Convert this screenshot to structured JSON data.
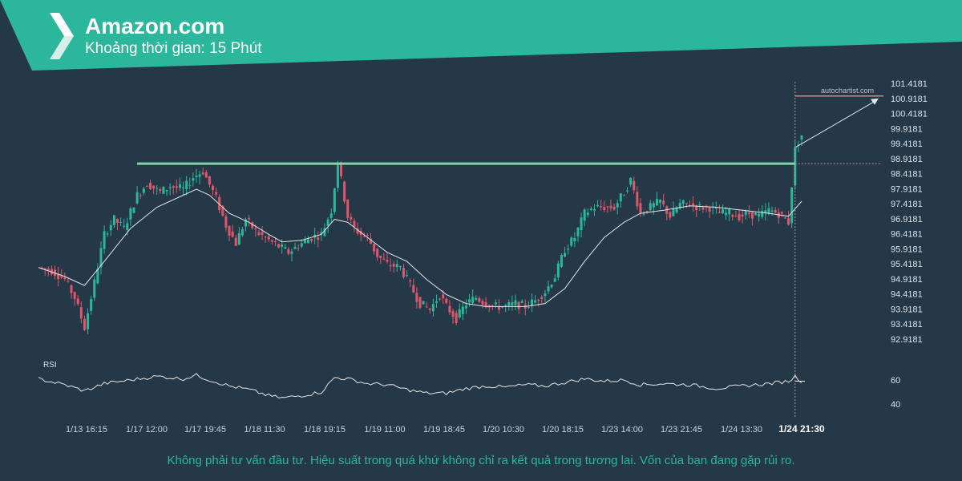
{
  "header": {
    "title": "Amazon.com",
    "subtitle": "Khoảng thời gian: 15 Phút",
    "band_color": "#2bb79c"
  },
  "footer": {
    "disclaimer": "Không phải tư vấn đầu tư. Hiệu suất trong quá khứ không chỉ ra kết quả trong tương lai. Vốn của bạn đang gặp rủi ro."
  },
  "watermark": "autochartist.com",
  "chart_data": [
    {
      "type": "candlestick",
      "title": "",
      "y_tick_labels": [
        "101.4181",
        "100.9181",
        "100.4181",
        "99.9181",
        "99.4181",
        "98.9181",
        "98.4181",
        "97.9181",
        "97.4181",
        "96.9181",
        "96.4181",
        "95.9181",
        "95.4181",
        "94.9181",
        "94.4181",
        "93.9181",
        "93.4181",
        "92.9181"
      ],
      "ylim": [
        92.7,
        101.6
      ],
      "x_tick_labels": [
        "1/13 16:15",
        "1/17 12:00",
        "1/17 19:45",
        "1/18 11:30",
        "1/18 19:15",
        "1/19 11:00",
        "1/19 18:45",
        "1/20 10:30",
        "1/20 18:15",
        "1/23 14:00",
        "1/23 21:45",
        "1/24 13:30",
        "1/24 21:30"
      ],
      "highlighted_x_label": "1/24 21:30",
      "resistance_level": 98.75,
      "forecast_target": 101.0,
      "up_color": "#2bb79c",
      "down_color": "#e0566a",
      "close_path": [
        [
          0,
          95.3
        ],
        [
          4,
          95.2
        ],
        [
          8,
          94.9
        ],
        [
          11,
          94.3
        ],
        [
          14,
          93.3
        ],
        [
          17,
          94.8
        ],
        [
          20,
          96.4
        ],
        [
          23,
          96.9
        ],
        [
          26,
          96.6
        ],
        [
          30,
          97.7
        ],
        [
          33,
          98.1
        ],
        [
          37,
          97.8
        ],
        [
          40,
          98.0
        ],
        [
          44,
          97.9
        ],
        [
          47,
          98.3
        ],
        [
          50,
          98.5
        ],
        [
          54,
          97.6
        ],
        [
          57,
          96.7
        ],
        [
          60,
          96.1
        ],
        [
          63,
          96.9
        ],
        [
          66,
          96.5
        ],
        [
          70,
          96.2
        ],
        [
          73,
          96.0
        ],
        [
          76,
          95.8
        ],
        [
          80,
          96.1
        ],
        [
          83,
          96.3
        ],
        [
          86,
          96.4
        ],
        [
          89,
          97.2
        ],
        [
          91,
          98.8
        ],
        [
          94,
          97.0
        ],
        [
          96,
          96.6
        ],
        [
          98,
          96.4
        ],
        [
          100,
          96.3
        ],
        [
          103,
          95.7
        ],
        [
          106,
          95.4
        ],
        [
          110,
          95.3
        ],
        [
          113,
          94.7
        ],
        [
          116,
          94.1
        ],
        [
          119,
          93.9
        ],
        [
          122,
          94.4
        ],
        [
          124,
          94.0
        ],
        [
          127,
          93.6
        ],
        [
          130,
          94.1
        ],
        [
          133,
          94.3
        ],
        [
          136,
          94.1
        ],
        [
          139,
          94.0
        ],
        [
          142,
          94.0
        ],
        [
          145,
          94.1
        ],
        [
          148,
          94.0
        ],
        [
          151,
          94.2
        ],
        [
          154,
          94.5
        ],
        [
          157,
          95.0
        ],
        [
          160,
          95.9
        ],
        [
          163,
          96.3
        ],
        [
          166,
          97.1
        ],
        [
          169,
          97.3
        ],
        [
          172,
          97.3
        ],
        [
          175,
          97.3
        ],
        [
          178,
          97.8
        ],
        [
          180,
          98.2
        ],
        [
          183,
          97.1
        ],
        [
          186,
          97.3
        ],
        [
          189,
          97.5
        ],
        [
          192,
          97.0
        ],
        [
          195,
          97.4
        ],
        [
          198,
          97.4
        ],
        [
          201,
          97.3
        ],
        [
          204,
          97.3
        ],
        [
          207,
          97.1
        ],
        [
          210,
          97.1
        ],
        [
          213,
          97.0
        ],
        [
          216,
          97.1
        ],
        [
          219,
          97.0
        ],
        [
          222,
          97.2
        ],
        [
          225,
          97.1
        ],
        [
          228,
          96.8
        ],
        [
          230,
          99.3
        ],
        [
          232,
          99.7
        ]
      ],
      "moving_average": [
        [
          0,
          95.3
        ],
        [
          8,
          95.0
        ],
        [
          14,
          94.7
        ],
        [
          20,
          95.5
        ],
        [
          28,
          96.6
        ],
        [
          36,
          97.3
        ],
        [
          44,
          97.7
        ],
        [
          48,
          97.9
        ],
        [
          52,
          97.7
        ],
        [
          58,
          97.1
        ],
        [
          64,
          96.8
        ],
        [
          70,
          96.4
        ],
        [
          74,
          96.15
        ],
        [
          80,
          96.2
        ],
        [
          86,
          96.4
        ],
        [
          90,
          96.9
        ],
        [
          94,
          96.8
        ],
        [
          100,
          96.3
        ],
        [
          106,
          95.8
        ],
        [
          112,
          95.5
        ],
        [
          118,
          94.9
        ],
        [
          124,
          94.4
        ],
        [
          130,
          94.1
        ],
        [
          136,
          94.0
        ],
        [
          142,
          94.0
        ],
        [
          148,
          94.0
        ],
        [
          154,
          94.1
        ],
        [
          160,
          94.6
        ],
        [
          166,
          95.5
        ],
        [
          172,
          96.3
        ],
        [
          178,
          96.8
        ],
        [
          183,
          97.1
        ],
        [
          190,
          97.2
        ],
        [
          198,
          97.35
        ],
        [
          206,
          97.3
        ],
        [
          214,
          97.2
        ],
        [
          222,
          97.1
        ],
        [
          228,
          97.0
        ],
        [
          232,
          97.5
        ]
      ],
      "series": [
        {
          "name": "RSI",
          "ylim": [
            32,
            75
          ],
          "y_tick_labels": [
            "60",
            "40"
          ],
          "points": [
            [
              0,
              61
            ],
            [
              8,
              56
            ],
            [
              14,
              51
            ],
            [
              20,
              57
            ],
            [
              28,
              60
            ],
            [
              36,
              63
            ],
            [
              44,
              61
            ],
            [
              48,
              64
            ],
            [
              52,
              60
            ],
            [
              58,
              55
            ],
            [
              64,
              52
            ],
            [
              70,
              47
            ],
            [
              74,
              45
            ],
            [
              80,
              47
            ],
            [
              86,
              50
            ],
            [
              90,
              62
            ],
            [
              94,
              61
            ],
            [
              100,
              57
            ],
            [
              106,
              56
            ],
            [
              112,
              52
            ],
            [
              118,
              49
            ],
            [
              124,
              49
            ],
            [
              130,
              53
            ],
            [
              136,
              55
            ],
            [
              142,
              54
            ],
            [
              148,
              56
            ],
            [
              154,
              55
            ],
            [
              160,
              58
            ],
            [
              166,
              61
            ],
            [
              172,
              59
            ],
            [
              178,
              60
            ],
            [
              183,
              56
            ],
            [
              190,
              57
            ],
            [
              198,
              56
            ],
            [
              206,
              53
            ],
            [
              214,
              55
            ],
            [
              222,
              57
            ],
            [
              228,
              59
            ],
            [
              230,
              63
            ],
            [
              232,
              59
            ]
          ]
        }
      ]
    }
  ]
}
